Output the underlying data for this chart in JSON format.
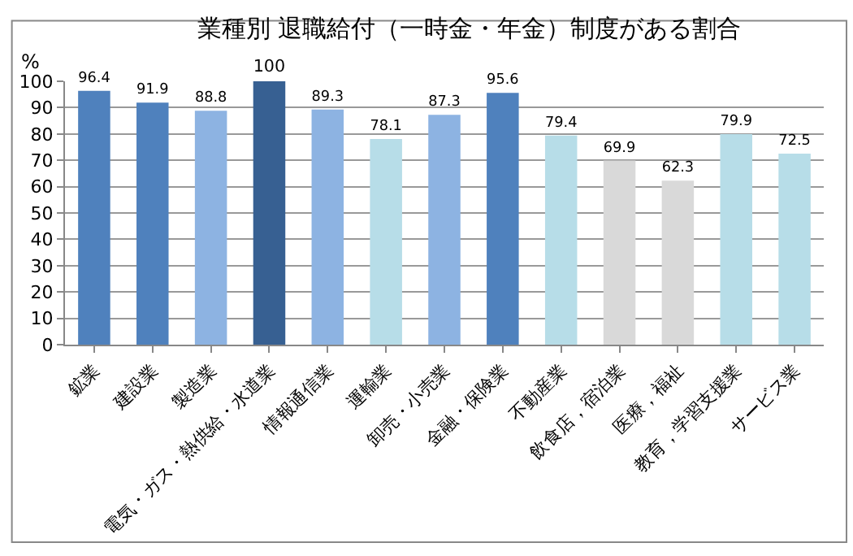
{
  "chart_data": {
    "type": "bar",
    "title": "業種別 退職給付（一時金・年金）制度がある割合",
    "ylabel": "%",
    "categories": [
      "鉱業",
      "建設業",
      "製造業",
      "電気・ガス・熱供給・水道業",
      "情報通信業",
      "運輸業",
      "卸売・小売業",
      "金融・保険業",
      "不動産業",
      "飲食店，宿泊業",
      "医療，福祉",
      "教育，学習支援業",
      "サービス業"
    ],
    "values": [
      96.4,
      91.9,
      88.8,
      100,
      89.3,
      78.1,
      87.3,
      95.6,
      79.4,
      69.9,
      62.3,
      79.9,
      72.5
    ],
    "colors": [
      "#4f81bd",
      "#4f81bd",
      "#8db3e2",
      "#376092",
      "#8db3e2",
      "#b7dde8",
      "#8db3e2",
      "#4f81bd",
      "#b7dde8",
      "#d9d9d9",
      "#d9d9d9",
      "#b7dde8",
      "#b7dde8"
    ],
    "ylim": [
      0,
      100
    ],
    "yticks": [
      0,
      10,
      20,
      30,
      40,
      50,
      60,
      70,
      80,
      90,
      100
    ],
    "grid": "y",
    "data_labels": true
  }
}
